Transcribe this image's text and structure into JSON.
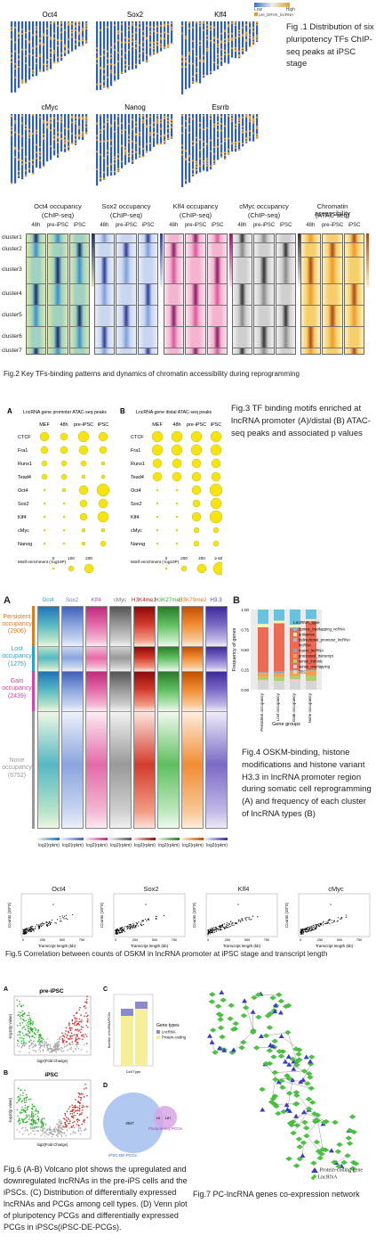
{
  "fig1": {
    "panels": [
      "Oct4",
      "Sox2",
      "Klf4",
      "cMyc",
      "Nanog",
      "Esrrb"
    ],
    "legend": [
      "Low",
      "High",
      "pre_ERVK_lncRNA"
    ],
    "caption": "Fig .1 Distribution of six pluripotency TFs ChIP-seq peaks at iPSC stage"
  },
  "fig2": {
    "groups": [
      {
        "title": "Oct4 occupancy",
        "sub": "(ChIP-seq)",
        "cols": [
          "48h",
          "pre-iPSC",
          "iPSC"
        ],
        "color": "#1f5fa8"
      },
      {
        "title": "Sox2 occupancy",
        "sub": "(ChIP-seq)",
        "cols": [
          "48h",
          "pre-iPSC",
          "iPSC"
        ],
        "color": "#5b7fc6"
      },
      {
        "title": "Klf4 occupancy",
        "sub": "(ChIP-seq)",
        "cols": [
          "48h",
          "pre-iPSC",
          "iPSC"
        ],
        "color": "#d6478f"
      },
      {
        "title": "cMyc occupancy",
        "sub": "(ChIP-seq)",
        "cols": [
          "48h",
          "pre-iPSC",
          "iPSC"
        ],
        "color": "#777777"
      },
      {
        "title": "Chromatin accessibility",
        "sub": "(ATAC-seq)",
        "cols": [
          "48h",
          "pre-iPSC",
          "iPSC"
        ],
        "color": "#e58a12"
      }
    ],
    "clusters": [
      "cluster1",
      "cluster2",
      "cluster3",
      "cluster4",
      "cluster5",
      "cluster6",
      "cluster7"
    ],
    "caption": "Fig.2 Key TFs-binding patterns and dynamics of chromatin accessibility during reprogramming"
  },
  "fig3": {
    "panelA": {
      "letter": "A",
      "title": "LncRNA gene promoter ATAC-seq peaks",
      "cols": [
        "MEF",
        "48h",
        "pre-iPSC",
        "iPSC"
      ]
    },
    "panelB": {
      "letter": "B",
      "title": "LncRNA gene distal ATAC-seq peaks",
      "cols": [
        "MEF",
        "48h",
        "pre-iPSC",
        "iPSC"
      ]
    },
    "rows": [
      "CTCF",
      "Fra1",
      "Runx1",
      "Tead4",
      "Oct4",
      "Sox2",
      "Klf4",
      "cMyc",
      "Nanog"
    ],
    "legendA": {
      "label": "Motif enrichment (-log10P)",
      "ticks": [
        "0",
        "100",
        "200"
      ]
    },
    "legendB": {
      "label": "Motif enrichment (-log10P)",
      "ticks": [
        "0",
        "200",
        "400",
        "≥ 600"
      ]
    },
    "caption": "Fig.3 TF binding motifs enriched at lncRNA promoter (A)/distal (B) ATAC-seq peaks and associated p values"
  },
  "fig4": {
    "letterA": "A",
    "letterB": "B",
    "tracks": [
      "Oct4",
      "Sox2",
      "Klf4",
      "cMyc",
      "H3K4me3",
      "H3K27me3",
      "H3K79me2",
      "H3.3"
    ],
    "groups": [
      {
        "label": "Persistent occupancy",
        "count": "(2906)",
        "color": "#e07a1f"
      },
      {
        "label": "Lost occupancy",
        "count": "(1275)",
        "color": "#2aa0d8"
      },
      {
        "label": "Gain occupancy",
        "count": "(2439)",
        "color": "#d63fb0"
      },
      {
        "label": "None occupancy",
        "count": "(6752)",
        "color": "#999999"
      }
    ],
    "xlabel": "log2(rpkm)",
    "bar": {
      "ylabel": "Frequency of genes",
      "xlabel": "Gene groups",
      "categories": [
        "Persistent occupancy",
        "Lost occupancy",
        "Gain occupancy",
        "None occupancy"
      ],
      "yticks": [
        "0.00",
        "0.25",
        "0.50",
        "0.75",
        "1.00"
      ],
      "legend_title": "LncRNA_type",
      "types": [
        {
          "name": "3prime_overlapping_ncRNA",
          "color": "#67c3e0"
        },
        {
          "name": "antisense",
          "color": "#fff7a8"
        },
        {
          "name": "bidirectional_promoter_lncRNA",
          "color": "#b9b1d6"
        },
        {
          "name": "lncRNA",
          "color": "#ee6a55"
        },
        {
          "name": "macro_lncRNA",
          "color": "#7fa8c9"
        },
        {
          "name": "processed_transcript",
          "color": "#f0a34a"
        },
        {
          "name": "sense_intronic",
          "color": "#a8d36a"
        },
        {
          "name": "sense_overlapping",
          "color": "#f3c9d8"
        },
        {
          "name": "TEC",
          "color": "#d6d6d6"
        }
      ]
    },
    "caption": "Fig.4 OSKM-binding, histone modifications and histone variant H3.3 in lncRNA promoter region during somatic cell reprogramming (A) and frequency of each cluster of lncRNA types (B)"
  },
  "fig5": {
    "panels": [
      "Oct4",
      "Sox2",
      "Klf4",
      "cMyc"
    ],
    "ylabel": "Counts (10^3)",
    "xlabel": "Transcript length (kb)",
    "xticks": [
      "0",
      "250",
      "500",
      "750"
    ],
    "caption": "Fig.5 Correlation between counts of OSKM in lncRNA promoter at iPSC stage and transcript length"
  },
  "fig6": {
    "letters": [
      "A",
      "B",
      "C",
      "D"
    ],
    "volcano": [
      {
        "title": "pre-iPSC"
      },
      {
        "title": "iPSC"
      }
    ],
    "xlabel": "log2(Fold Change)",
    "ylabel": "-log10(p value)",
    "barC": {
      "ylabel": "Number of lncRNA/PCGs",
      "xlabel": "Cell Type",
      "categories": [
        "pre-iPSC",
        "iPSC"
      ],
      "legend_title": "Gene types",
      "legend": [
        "LncRNA",
        "Protein-coding"
      ]
    },
    "venn": {
      "big": "4947",
      "overlap": "10",
      "small": "187",
      "label_big": "iPSC-DE-PCGs",
      "label_small": "Pluripotency PCGs"
    },
    "caption": "Fig.6 (A-B) Volcano plot shows the upregulated and downregulated lncRNAs in the pre-iPS cells and the iPSCs. (C) Distribution of differentially expressed lncRNAs and PCGs among cell types. (D) Venn plot of pluripotency PCGs and differentially expressed PCGs in iPSCs(iPSC-DE-PCGs)."
  },
  "fig7": {
    "legend": [
      "Protein-coding gene",
      "LncRNA"
    ],
    "caption": "Fig.7 PC-lncRNA genes co-expression network"
  },
  "colors": {
    "protein": "#3b3bc8",
    "lncrna": "#46c83c",
    "up": "#d62c2c",
    "down": "#2cb32c"
  }
}
